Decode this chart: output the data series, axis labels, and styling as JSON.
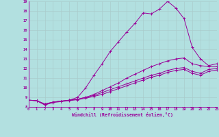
{
  "xlabel": "Windchill (Refroidissement éolien,°C)",
  "bg_color": "#b2e0e0",
  "line_color": "#990099",
  "grid_color": "#aacccc",
  "xlim": [
    0,
    23
  ],
  "ylim": [
    8,
    19
  ],
  "xticks": [
    0,
    1,
    2,
    3,
    4,
    5,
    6,
    7,
    8,
    9,
    10,
    11,
    12,
    13,
    14,
    15,
    16,
    17,
    18,
    19,
    20,
    21,
    22,
    23
  ],
  "yticks": [
    8,
    9,
    10,
    11,
    12,
    13,
    14,
    15,
    16,
    17,
    18,
    19
  ],
  "curve1_x": [
    0,
    1,
    2,
    3,
    4,
    5,
    6,
    7,
    8,
    9,
    10,
    11,
    12,
    13,
    14,
    15,
    16,
    17,
    18,
    19,
    20,
    21,
    22,
    23
  ],
  "curve1_y": [
    8.7,
    8.65,
    8.2,
    8.5,
    8.6,
    8.7,
    9.0,
    10.0,
    11.3,
    12.5,
    13.8,
    14.8,
    15.8,
    16.7,
    17.8,
    17.7,
    18.2,
    19.0,
    18.3,
    17.2,
    14.2,
    13.0,
    12.3,
    12.5
  ],
  "curve2_x": [
    0,
    1,
    2,
    3,
    4,
    5,
    6,
    7,
    8,
    9,
    10,
    11,
    12,
    13,
    14,
    15,
    16,
    17,
    18,
    19,
    20,
    21,
    22,
    23
  ],
  "curve2_y": [
    8.7,
    8.65,
    8.3,
    8.5,
    8.6,
    8.7,
    8.8,
    9.0,
    9.3,
    9.7,
    10.1,
    10.5,
    11.0,
    11.4,
    11.8,
    12.2,
    12.5,
    12.8,
    13.0,
    13.1,
    12.5,
    12.3,
    12.2,
    12.2
  ],
  "curve3_x": [
    0,
    1,
    2,
    3,
    4,
    5,
    6,
    7,
    8,
    9,
    10,
    11,
    12,
    13,
    14,
    15,
    16,
    17,
    18,
    19,
    20,
    21,
    22,
    23
  ],
  "curve3_y": [
    8.7,
    8.65,
    8.3,
    8.5,
    8.6,
    8.7,
    8.8,
    9.0,
    9.2,
    9.5,
    9.8,
    10.1,
    10.4,
    10.7,
    11.0,
    11.3,
    11.5,
    11.8,
    12.0,
    12.1,
    11.7,
    11.5,
    11.9,
    12.0
  ],
  "curve4_x": [
    0,
    1,
    2,
    3,
    4,
    5,
    6,
    7,
    8,
    9,
    10,
    11,
    12,
    13,
    14,
    15,
    16,
    17,
    18,
    19,
    20,
    21,
    22,
    23
  ],
  "curve4_y": [
    8.7,
    8.65,
    8.2,
    8.45,
    8.55,
    8.65,
    8.75,
    8.9,
    9.1,
    9.3,
    9.6,
    9.9,
    10.2,
    10.5,
    10.8,
    11.1,
    11.3,
    11.6,
    11.8,
    11.9,
    11.5,
    11.3,
    11.7,
    11.85
  ],
  "font_size_ticks": 4.0,
  "font_size_xlabel": 4.8,
  "lw": 0.7,
  "marker_size": 2.2
}
